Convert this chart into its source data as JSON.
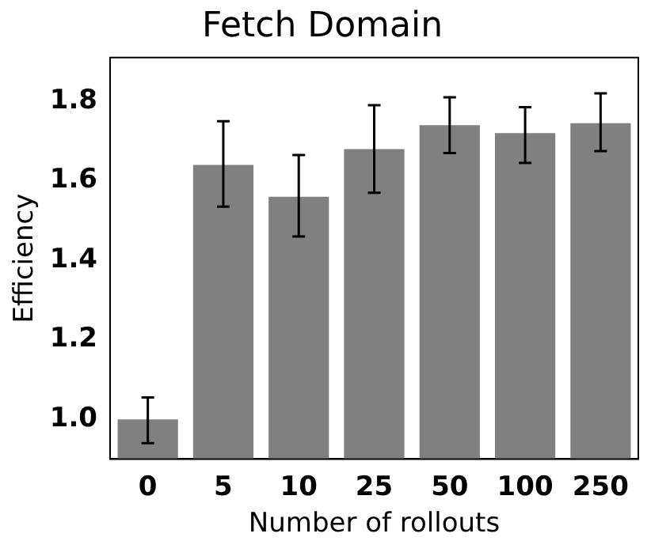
{
  "chart_data": {
    "type": "bar",
    "title": "Fetch Domain",
    "xlabel": "Number of rollouts",
    "ylabel": "Efficiency",
    "categories": [
      "0",
      "5",
      "10",
      "25",
      "50",
      "100",
      "250"
    ],
    "values": [
      1.0,
      1.64,
      1.56,
      1.68,
      1.74,
      1.72,
      1.745
    ],
    "errors": [
      [
        0.94,
        1.055
      ],
      [
        1.535,
        1.75
      ],
      [
        1.46,
        1.665
      ],
      [
        1.57,
        1.79
      ],
      [
        1.67,
        1.81
      ],
      [
        1.645,
        1.785
      ],
      [
        1.675,
        1.82
      ]
    ],
    "color": "#808080",
    "ylim": [
      0.9,
      1.91
    ],
    "yticks": [
      {
        "value": 1.0,
        "label": "1.0"
      },
      {
        "value": 1.2,
        "label": "1.2"
      },
      {
        "value": 1.4,
        "label": "1.4"
      },
      {
        "value": 1.6,
        "label": "1.6"
      },
      {
        "value": 1.8,
        "label": "1.8"
      }
    ],
    "grid": false,
    "legend": false
  }
}
